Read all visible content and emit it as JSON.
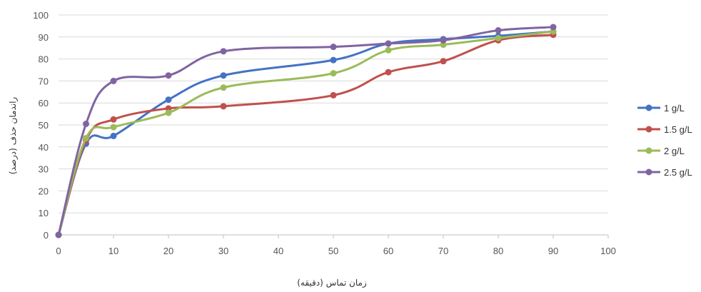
{
  "chart_data": {
    "type": "line",
    "smooth": true,
    "x": [
      0,
      5,
      10,
      20,
      30,
      50,
      60,
      70,
      80,
      90
    ],
    "xlim": [
      0,
      100
    ],
    "xticks": [
      "0",
      "10",
      "20",
      "30",
      "40",
      "50",
      "60",
      "70",
      "80",
      "90",
      "100"
    ],
    "ylim": [
      0,
      100
    ],
    "yticks": [
      "0",
      "10",
      "20",
      "30",
      "40",
      "50",
      "60",
      "70",
      "80",
      "90",
      "100"
    ],
    "grid": "horizontal",
    "legend_position": "right",
    "xlabel": "زمان تماس (دقیقه)",
    "ylabel": "راندمان حذف (درصد)",
    "series": [
      {
        "name": "1 g/L",
        "color": "#4472C4",
        "values": [
          0,
          41.5,
          45,
          61.5,
          72.5,
          79.5,
          87,
          89,
          90.5,
          92.5
        ]
      },
      {
        "name": "1.5 g/L",
        "color": "#C0504D",
        "values": [
          0,
          43,
          52.5,
          57.5,
          58.5,
          63.5,
          74,
          79,
          88.5,
          91
        ]
      },
      {
        "name": "2 g/L",
        "color": "#9BBB59",
        "values": [
          0,
          44,
          49,
          55.5,
          67,
          73.5,
          84,
          86.5,
          89.5,
          92.5
        ]
      },
      {
        "name": "2.5 g/L",
        "color": "#8064A2",
        "values": [
          0,
          50.5,
          70,
          72.5,
          83.5,
          85.5,
          87,
          88.5,
          93,
          94.5
        ]
      }
    ]
  }
}
